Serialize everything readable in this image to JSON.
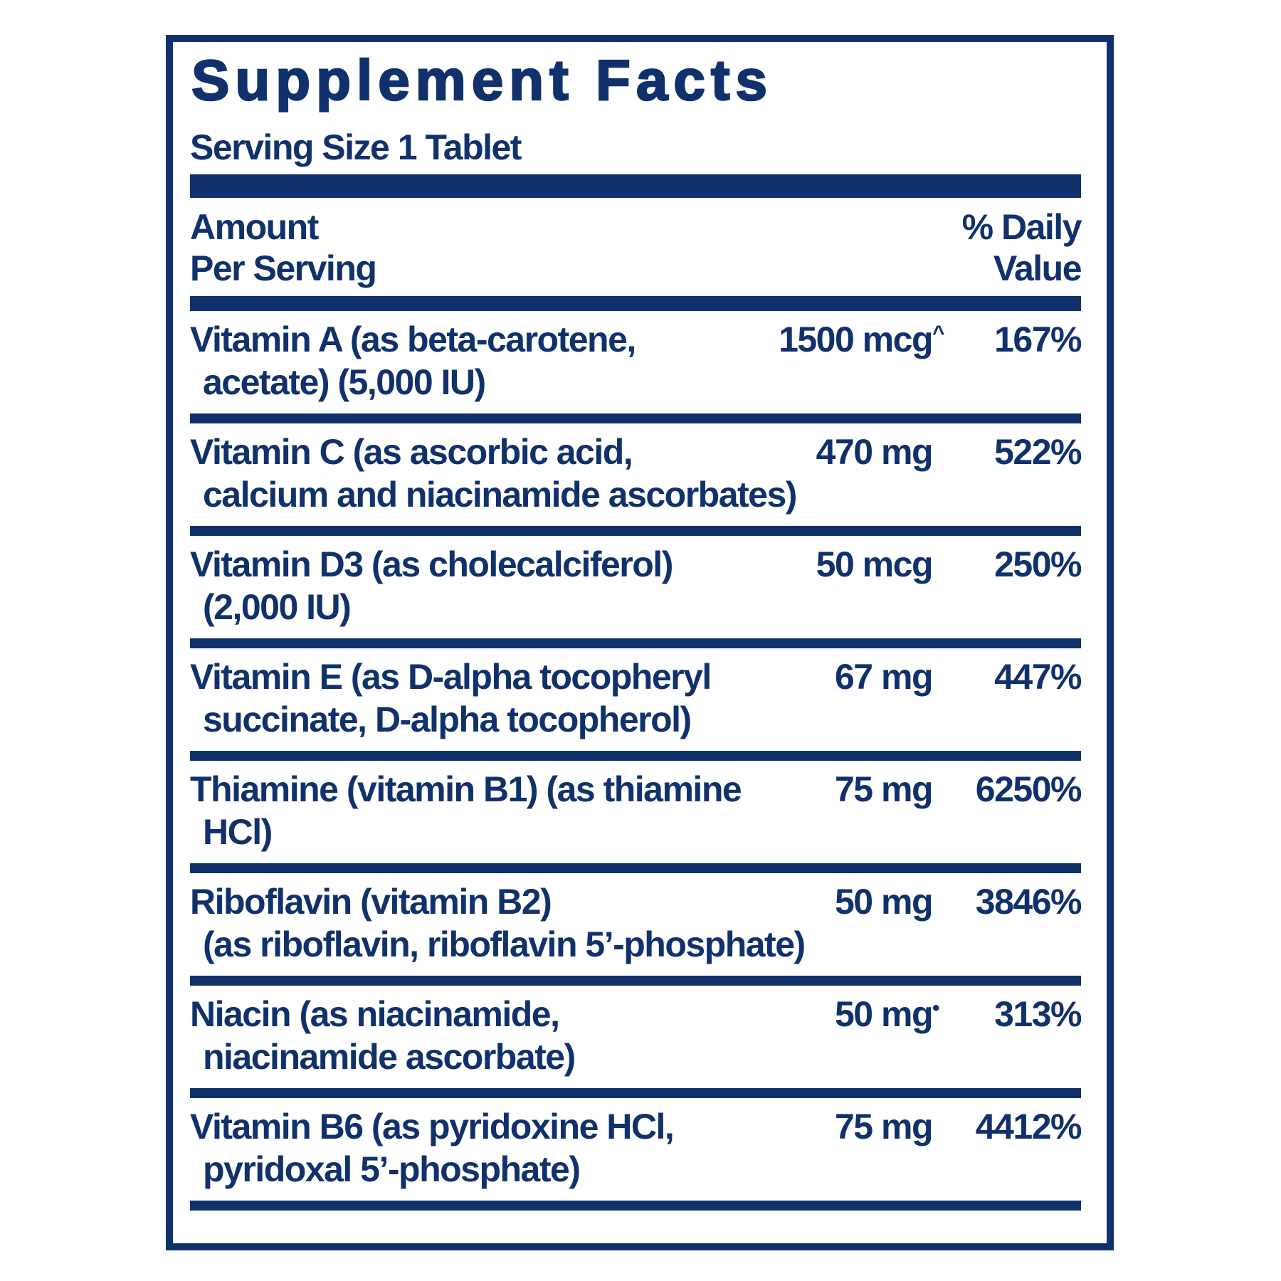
{
  "panel": {
    "title": "Supplement Facts",
    "serving_size": "Serving Size 1 Tablet",
    "header": {
      "amount_line1": "Amount",
      "amount_line2": "Per Serving",
      "dv_line1": "% Daily",
      "dv_line2": "Value"
    },
    "colors": {
      "navy": "#10316b",
      "background": "#ffffff"
    },
    "rows": [
      {
        "name_line1": "Vitamin A (as beta-carotene,",
        "name_line2": "acetate) (5,000 IU)",
        "amount": "1500 mcg",
        "amount_sup": "^",
        "dv": "167%"
      },
      {
        "name_line1": "Vitamin C (as ascorbic acid,",
        "name_line2": "calcium and niacinamide ascorbates)",
        "amount": "470 mg",
        "amount_sup": "",
        "dv": "522%"
      },
      {
        "name_line1": "Vitamin D3 (as cholecalciferol)",
        "name_line2": "(2,000 IU)",
        "amount": "50 mcg",
        "amount_sup": "",
        "dv": "250%"
      },
      {
        "name_line1": "Vitamin E (as D-alpha tocopheryl",
        "name_line2": "succinate, D-alpha tocopherol)",
        "amount": "67 mg",
        "amount_sup": "",
        "dv": "447%"
      },
      {
        "name_line1": "Thiamine (vitamin B1) (as thiamine",
        "name_line2": "HCl)",
        "amount": "75 mg",
        "amount_sup": "",
        "dv": "6250%"
      },
      {
        "name_line1": "Riboflavin (vitamin B2)",
        "name_line2": "(as riboflavin, riboflavin 5’-phosphate)",
        "amount": "50 mg",
        "amount_sup": "",
        "dv": "3846%"
      },
      {
        "name_line1": "Niacin (as niacinamide,",
        "name_line2": "niacinamide ascorbate)",
        "amount": "50 mg",
        "amount_sup": "•",
        "dv": "313%"
      },
      {
        "name_line1": "Vitamin B6 (as pyridoxine HCl,",
        "name_line2": "pyridoxal 5’-phosphate)",
        "amount": "75 mg",
        "amount_sup": "",
        "dv": "4412%"
      }
    ]
  }
}
